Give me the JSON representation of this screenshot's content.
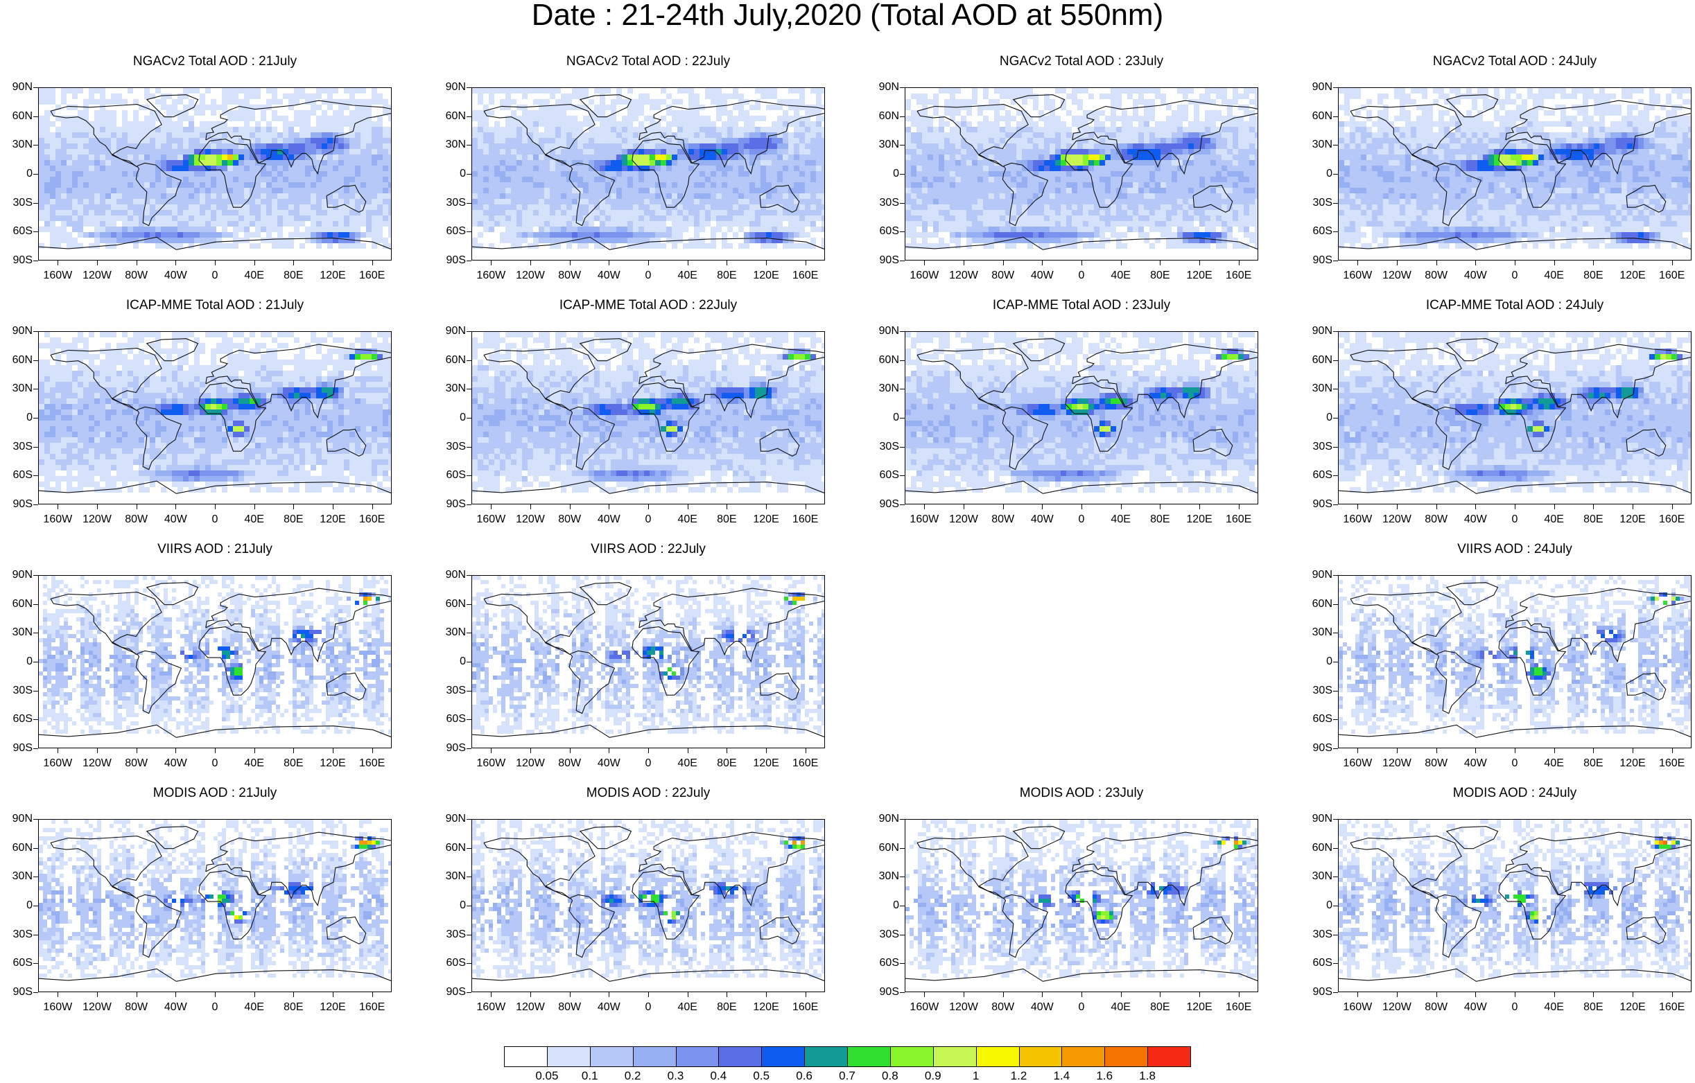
{
  "title": "Date : 21-24th July,2020 (Total AOD at 550nm)",
  "lat_labels": [
    "90N",
    "60N",
    "30N",
    "0",
    "30S",
    "60S",
    "90S"
  ],
  "lon_labels": [
    "160W",
    "120W",
    "80W",
    "40W",
    "0",
    "40E",
    "80E",
    "120E",
    "160E"
  ],
  "panels": [
    {
      "title": "NGACv2 Total AOD : 21July",
      "dataset": "NGACv2",
      "day": "21July",
      "row": 0,
      "col": 0
    },
    {
      "title": "NGACv2 Total AOD : 22July",
      "dataset": "NGACv2",
      "day": "22July",
      "row": 0,
      "col": 1
    },
    {
      "title": "NGACv2 Total AOD : 23July",
      "dataset": "NGACv2",
      "day": "23July",
      "row": 0,
      "col": 2
    },
    {
      "title": "NGACv2 Total AOD : 24July",
      "dataset": "NGACv2",
      "day": "24July",
      "row": 0,
      "col": 3
    },
    {
      "title": "ICAP-MME Total AOD : 21July",
      "dataset": "ICAP-MME",
      "day": "21July",
      "row": 1,
      "col": 0
    },
    {
      "title": "ICAP-MME Total AOD : 22July",
      "dataset": "ICAP-MME",
      "day": "22July",
      "row": 1,
      "col": 1
    },
    {
      "title": "ICAP-MME Total AOD : 23July",
      "dataset": "ICAP-MME",
      "day": "23July",
      "row": 1,
      "col": 2
    },
    {
      "title": "ICAP-MME Total AOD : 24July",
      "dataset": "ICAP-MME",
      "day": "24July",
      "row": 1,
      "col": 3
    },
    {
      "title": "VIIRS AOD : 21July",
      "dataset": "VIIRS",
      "day": "21July",
      "row": 2,
      "col": 0
    },
    {
      "title": "VIIRS AOD : 22July",
      "dataset": "VIIRS",
      "day": "22July",
      "row": 2,
      "col": 1
    },
    {
      "title": "VIIRS AOD : 24July",
      "dataset": "VIIRS",
      "day": "24July",
      "row": 2,
      "col": 3
    },
    {
      "title": "MODIS AOD : 21July",
      "dataset": "MODIS",
      "day": "21July",
      "row": 3,
      "col": 0
    },
    {
      "title": "MODIS AOD : 22July",
      "dataset": "MODIS",
      "day": "22July",
      "row": 3,
      "col": 1
    },
    {
      "title": "MODIS AOD : 23July",
      "dataset": "MODIS",
      "day": "23July",
      "row": 3,
      "col": 2
    },
    {
      "title": "MODIS AOD : 24July",
      "dataset": "MODIS",
      "day": "24July",
      "row": 3,
      "col": 3
    }
  ],
  "colorbar": {
    "labels": [
      "0.05",
      "0.1",
      "0.2",
      "0.3",
      "0.4",
      "0.5",
      "0.6",
      "0.7",
      "0.8",
      "0.9",
      "1",
      "1.2",
      "1.4",
      "1.6",
      "1.8"
    ],
    "colors": [
      "#ffffff",
      "#d6e1fb",
      "#b5c8f7",
      "#97b0f3",
      "#7a93ee",
      "#5a6fe6",
      "#0f5cf0",
      "#129a96",
      "#2fe02f",
      "#8af52a",
      "#c7f551",
      "#f7f700",
      "#f5c400",
      "#f59a00",
      "#f57300",
      "#f52a14"
    ]
  }
}
